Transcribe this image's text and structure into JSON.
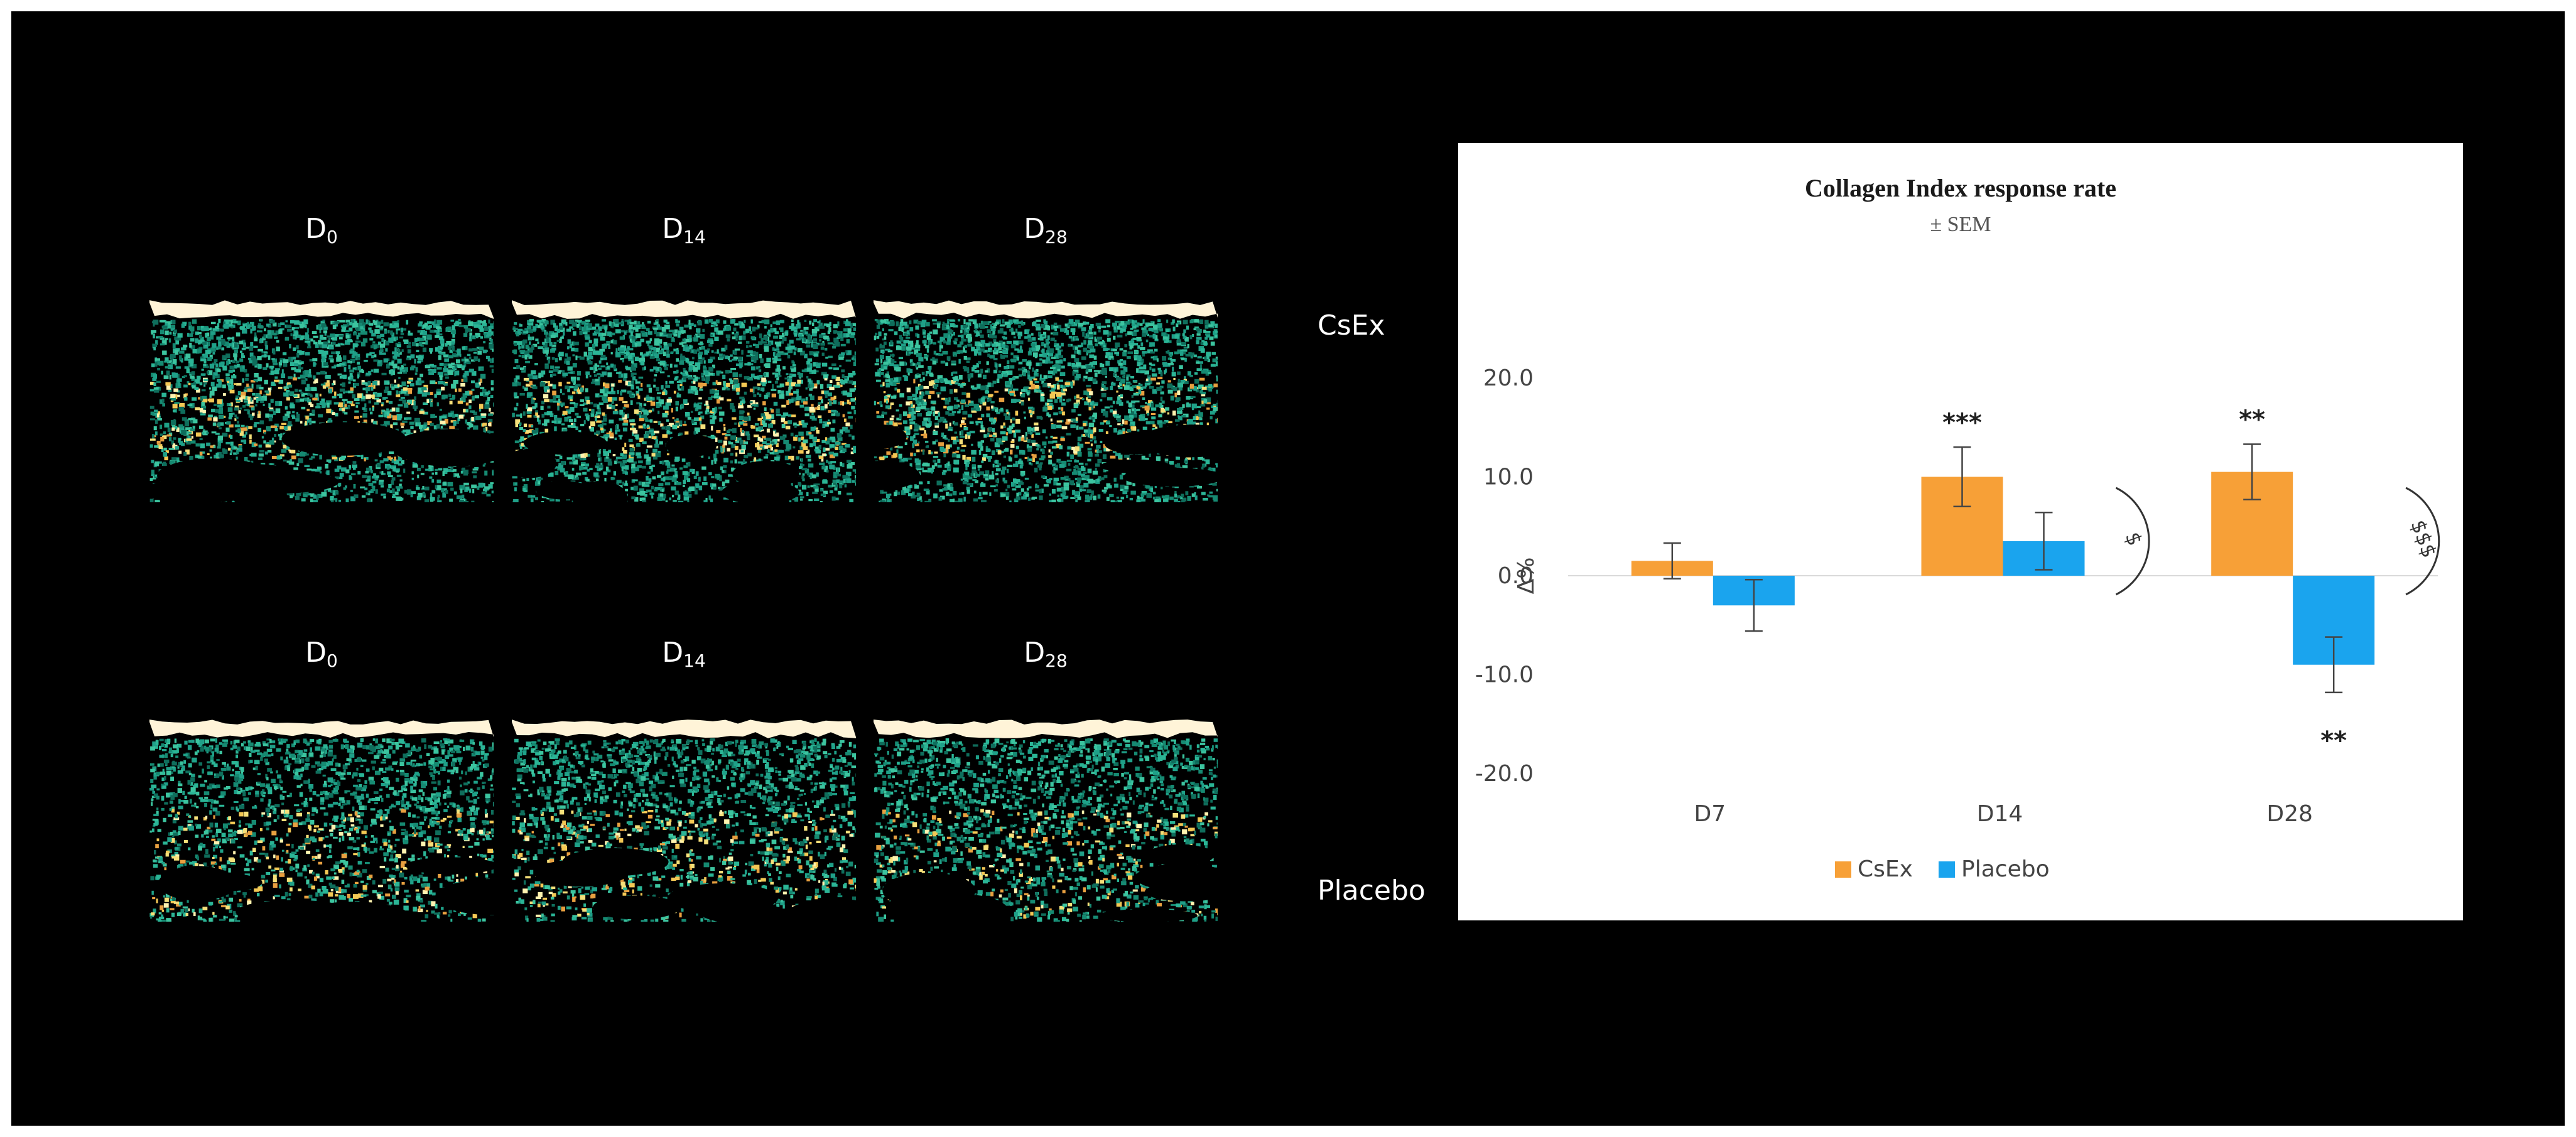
{
  "ultrasound": {
    "rows": [
      {
        "label": "CsEx",
        "days": [
          {
            "base": "D",
            "sub": "0"
          },
          {
            "base": "D",
            "sub": "14"
          },
          {
            "base": "D",
            "sub": "28"
          }
        ]
      },
      {
        "label": "Placebo",
        "days": [
          {
            "base": "D",
            "sub": "0"
          },
          {
            "base": "D",
            "sub": "14"
          },
          {
            "base": "D",
            "sub": "28"
          }
        ]
      }
    ]
  },
  "chart_data": {
    "type": "bar",
    "title": "Collagen Index response rate",
    "subtitle": "± SEM",
    "ylabel": "Δ%",
    "xlabel": "",
    "categories": [
      "D7",
      "D14",
      "D28"
    ],
    "ylim": [
      -20,
      20
    ],
    "yticks": [
      "20.0",
      "10.0",
      "0.0",
      "-10.0",
      "-20.0"
    ],
    "grid": false,
    "legend": "bottom",
    "series": [
      {
        "name": "CsEx",
        "color": "#F7A037",
        "values": [
          1.5,
          10.0,
          10.5
        ],
        "errors": [
          1.8,
          3.0,
          2.8
        ],
        "annotations": [
          "",
          "***",
          "**"
        ]
      },
      {
        "name": "Placebo",
        "color": "#1AA4EE",
        "values": [
          -3.0,
          3.5,
          -9.0
        ],
        "errors": [
          2.6,
          2.9,
          2.8
        ],
        "annotations": [
          "",
          "",
          "**"
        ]
      }
    ],
    "comparison_marks": [
      "",
      "$",
      "$$$"
    ]
  }
}
